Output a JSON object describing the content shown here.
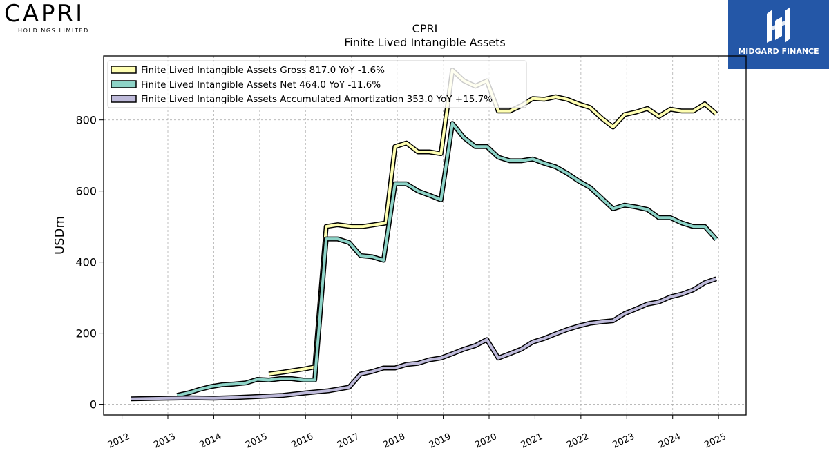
{
  "brand": {
    "left_logo_main": "CAPRI",
    "left_logo_sub": "HOLDINGS LIMITED",
    "right_logo_text": "MIDGARD FINANCE",
    "right_logo_color": "#2457a7"
  },
  "chart_data": {
    "type": "line",
    "title": "CPRI",
    "subtitle": "Finite Lived Intangible Assets",
    "ylabel": "USDm",
    "xlabel": "",
    "ylim": [
      -30,
      980
    ],
    "xlim": [
      2011.6,
      2025.6
    ],
    "yticks": [
      "0",
      "200",
      "400",
      "600",
      "800"
    ],
    "xticks": [
      "2012",
      "2013",
      "2014",
      "2015",
      "2016",
      "2017",
      "2018",
      "2019",
      "2020",
      "2021",
      "2022",
      "2023",
      "2024",
      "2025"
    ],
    "grid": true,
    "legend_position": "top-left",
    "series": [
      {
        "name": "Finite Lived Intangible Assets Gross",
        "legend": "Finite Lived Intangible Assets Gross  817.0 YoY -1.6%",
        "color": "#ffffb3",
        "points": [
          [
            2015.2,
            85
          ],
          [
            2015.5,
            90
          ],
          [
            2015.75,
            95
          ],
          [
            2016.0,
            100
          ],
          [
            2016.2,
            105
          ],
          [
            2016.45,
            500
          ],
          [
            2016.7,
            505
          ],
          [
            2017.0,
            500
          ],
          [
            2017.25,
            500
          ],
          [
            2017.5,
            505
          ],
          [
            2017.75,
            510
          ],
          [
            2017.95,
            725
          ],
          [
            2018.2,
            735
          ],
          [
            2018.45,
            710
          ],
          [
            2018.7,
            710
          ],
          [
            2018.95,
            705
          ],
          [
            2019.2,
            940
          ],
          [
            2019.45,
            910
          ],
          [
            2019.7,
            895
          ],
          [
            2019.95,
            910
          ],
          [
            2020.2,
            825
          ],
          [
            2020.45,
            825
          ],
          [
            2020.7,
            840
          ],
          [
            2020.95,
            860
          ],
          [
            2021.2,
            858
          ],
          [
            2021.45,
            865
          ],
          [
            2021.7,
            858
          ],
          [
            2021.95,
            845
          ],
          [
            2022.2,
            835
          ],
          [
            2022.45,
            805
          ],
          [
            2022.7,
            780
          ],
          [
            2022.95,
            815
          ],
          [
            2023.2,
            822
          ],
          [
            2023.45,
            832
          ],
          [
            2023.7,
            810
          ],
          [
            2023.95,
            830
          ],
          [
            2024.2,
            825
          ],
          [
            2024.45,
            825
          ],
          [
            2024.7,
            845
          ],
          [
            2024.95,
            817
          ]
        ]
      },
      {
        "name": "Finite Lived Intangible Assets Net",
        "legend": "Finite Lived Intangible Assets Net  464.0 YoY -11.6%",
        "color": "#8dd3c7",
        "points": [
          [
            2013.2,
            25
          ],
          [
            2013.45,
            32
          ],
          [
            2013.7,
            42
          ],
          [
            2013.95,
            50
          ],
          [
            2014.2,
            55
          ],
          [
            2014.45,
            57
          ],
          [
            2014.7,
            60
          ],
          [
            2014.95,
            70
          ],
          [
            2015.2,
            68
          ],
          [
            2015.45,
            72
          ],
          [
            2015.7,
            72
          ],
          [
            2015.95,
            68
          ],
          [
            2016.2,
            68
          ],
          [
            2016.45,
            465
          ],
          [
            2016.7,
            465
          ],
          [
            2016.95,
            455
          ],
          [
            2017.2,
            418
          ],
          [
            2017.45,
            415
          ],
          [
            2017.7,
            405
          ],
          [
            2017.95,
            620
          ],
          [
            2018.2,
            620
          ],
          [
            2018.45,
            600
          ],
          [
            2018.7,
            588
          ],
          [
            2018.95,
            575
          ],
          [
            2019.2,
            790
          ],
          [
            2019.45,
            750
          ],
          [
            2019.7,
            725
          ],
          [
            2019.95,
            725
          ],
          [
            2020.2,
            695
          ],
          [
            2020.45,
            685
          ],
          [
            2020.7,
            685
          ],
          [
            2020.95,
            690
          ],
          [
            2021.2,
            678
          ],
          [
            2021.45,
            668
          ],
          [
            2021.7,
            650
          ],
          [
            2021.95,
            628
          ],
          [
            2022.2,
            610
          ],
          [
            2022.45,
            580
          ],
          [
            2022.7,
            550
          ],
          [
            2022.95,
            560
          ],
          [
            2023.2,
            555
          ],
          [
            2023.45,
            548
          ],
          [
            2023.7,
            525
          ],
          [
            2023.95,
            525
          ],
          [
            2024.2,
            510
          ],
          [
            2024.45,
            500
          ],
          [
            2024.7,
            500
          ],
          [
            2024.95,
            464
          ]
        ]
      },
      {
        "name": "Finite Lived Intangible Assets Accumulated Amortization",
        "legend": "Finite Lived Intangible Assets Accumulated Amortization  353.0 YoY +15.7%",
        "color": "#bebada",
        "points": [
          [
            2012.2,
            15
          ],
          [
            2013.0,
            17
          ],
          [
            2013.5,
            18
          ],
          [
            2014.0,
            17
          ],
          [
            2014.5,
            19
          ],
          [
            2015.0,
            22
          ],
          [
            2015.5,
            25
          ],
          [
            2016.0,
            32
          ],
          [
            2016.5,
            38
          ],
          [
            2016.95,
            48
          ],
          [
            2017.2,
            85
          ],
          [
            2017.45,
            92
          ],
          [
            2017.7,
            102
          ],
          [
            2017.95,
            102
          ],
          [
            2018.2,
            112
          ],
          [
            2018.45,
            115
          ],
          [
            2018.7,
            125
          ],
          [
            2018.95,
            130
          ],
          [
            2019.2,
            142
          ],
          [
            2019.45,
            155
          ],
          [
            2019.7,
            165
          ],
          [
            2019.95,
            182
          ],
          [
            2020.2,
            130
          ],
          [
            2020.45,
            142
          ],
          [
            2020.7,
            155
          ],
          [
            2020.95,
            175
          ],
          [
            2021.2,
            185
          ],
          [
            2021.45,
            198
          ],
          [
            2021.7,
            210
          ],
          [
            2021.95,
            220
          ],
          [
            2022.2,
            228
          ],
          [
            2022.45,
            232
          ],
          [
            2022.7,
            235
          ],
          [
            2022.95,
            255
          ],
          [
            2023.2,
            268
          ],
          [
            2023.45,
            282
          ],
          [
            2023.7,
            288
          ],
          [
            2023.95,
            302
          ],
          [
            2024.2,
            310
          ],
          [
            2024.45,
            322
          ],
          [
            2024.7,
            342
          ],
          [
            2024.95,
            353
          ]
        ]
      }
    ]
  }
}
